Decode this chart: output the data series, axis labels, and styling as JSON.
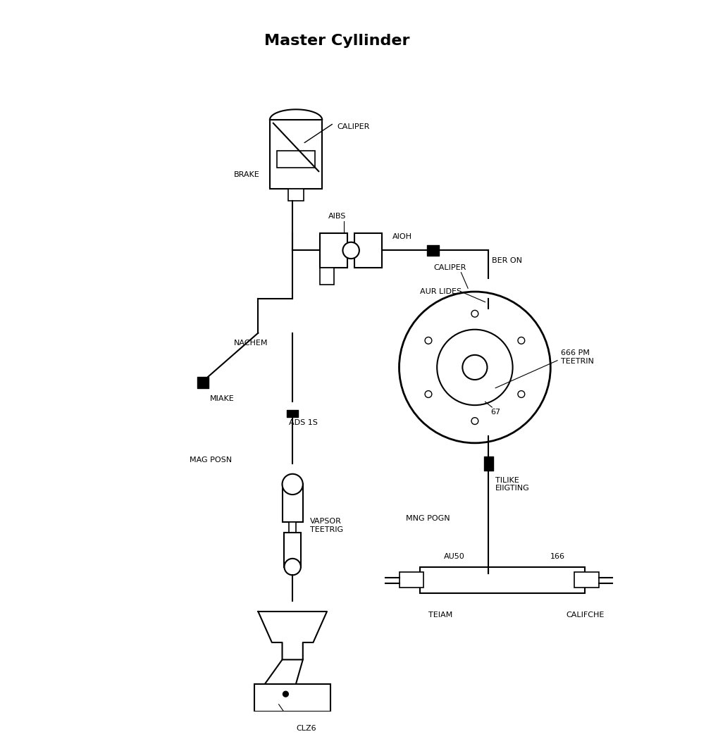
{
  "title": "Master Cyllinder",
  "bg_color": "#ffffff",
  "line_color": "#000000",
  "labels": {
    "caliper_top": "CALIPER",
    "brake": "BRAKE",
    "aibs": "AIBS",
    "aioh": "AIOH",
    "ber_on": "BER ON",
    "aur_lides": "AUR LIDES",
    "nachem": "NACHEM",
    "miake": "MIAKE",
    "ads_1s": "ADS 1S",
    "mag_posn": "MAG POSN",
    "vapsor_teetrig": "VAPSOR\nTEETRIG",
    "clz6": "CLZ6",
    "caliper_mid": "CALIPER",
    "pm_teetrin": "666 PM\nTEETRIN",
    "num_67": "67",
    "tilike": "TILIKE\nEIIGTING",
    "mng_pogn": "MNG POGN",
    "au50": "AU50",
    "num_166": "166",
    "teiam": "TEIAM",
    "califche": "CALIFCHE"
  }
}
